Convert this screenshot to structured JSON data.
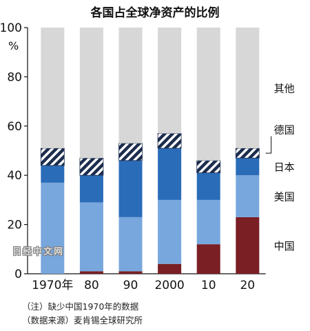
{
  "chart_data": {
    "type": "bar",
    "stacked": true,
    "title": "各国占全球净资产的比例",
    "ylabel": "%",
    "ylim": [
      0,
      100
    ],
    "yticks": [
      0,
      20,
      40,
      60,
      80,
      100
    ],
    "categories": [
      "1970年",
      "80",
      "90",
      "2000",
      "10",
      "20"
    ],
    "series": [
      {
        "name": "中国",
        "color": "#7a1f24",
        "values": [
          null,
          1,
          1,
          4,
          12,
          23
        ]
      },
      {
        "name": "美国",
        "color": "#78a7dd",
        "values": [
          37,
          28,
          22,
          26,
          18,
          17
        ]
      },
      {
        "name": "日本",
        "color": "#2b6cb8",
        "values": [
          7,
          11,
          23,
          21,
          11,
          7
        ]
      },
      {
        "name": "德国",
        "color": "#1c2d4e",
        "pattern": "hatch",
        "values": [
          7,
          7,
          7,
          6,
          5,
          4
        ]
      },
      {
        "name": "其他",
        "color": "#d7d7d7",
        "values": [
          49,
          53,
          47,
          43,
          54,
          49
        ]
      }
    ],
    "legend_placement": "right",
    "grid": false
  },
  "notes": [
    "（注）缺少中国1970年的数据",
    "（数据来源）麦肯锡全球研究所"
  ],
  "watermark": "日经中文网"
}
